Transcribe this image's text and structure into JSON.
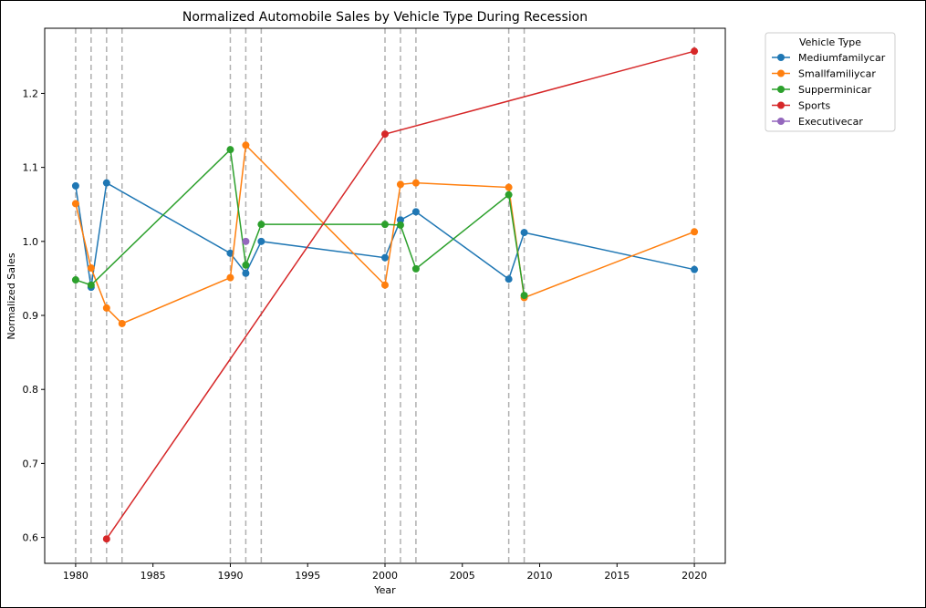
{
  "chart_data": {
    "type": "line",
    "title": "Normalized Automobile Sales by Vehicle Type During Recession",
    "xlabel": "Year",
    "ylabel": "Normalized Sales",
    "xlim": [
      1978,
      2022
    ],
    "ylim": [
      0.565,
      1.288
    ],
    "xticks": [
      1980,
      1985,
      1990,
      1995,
      2000,
      2005,
      2010,
      2015,
      2020
    ],
    "yticks": [
      0.6,
      0.7,
      0.8,
      0.9,
      1.0,
      1.1,
      1.2
    ],
    "recession_years": [
      1980,
      1981,
      1982,
      1983,
      1990,
      1991,
      1992,
      2000,
      2001,
      2002,
      2008,
      2009,
      2020
    ],
    "grid": false,
    "legend": {
      "title": "Vehicle Type",
      "placement": "outside-top-right"
    },
    "series": [
      {
        "name": "Mediumfamilycar",
        "color": "#1f77b4",
        "points": [
          [
            1980,
            1.075
          ],
          [
            1981,
            0.938
          ],
          [
            1982,
            1.079
          ],
          [
            1990,
            0.984
          ],
          [
            1991,
            0.957
          ],
          [
            1992,
            1.0
          ],
          [
            2000,
            0.978
          ],
          [
            2001,
            1.029
          ],
          [
            2002,
            1.04
          ],
          [
            2008,
            0.949
          ],
          [
            2009,
            1.012
          ],
          [
            2020,
            0.962
          ]
        ]
      },
      {
        "name": "Smallfamiliycar",
        "color": "#ff7f0e",
        "points": [
          [
            1980,
            1.051
          ],
          [
            1981,
            0.964
          ],
          [
            1982,
            0.91
          ],
          [
            1983,
            0.889
          ],
          [
            1990,
            0.951
          ],
          [
            1991,
            1.13
          ],
          [
            2000,
            0.941
          ],
          [
            2001,
            1.077
          ],
          [
            2002,
            1.079
          ],
          [
            2008,
            1.073
          ],
          [
            2009,
            0.924
          ],
          [
            2020,
            1.013
          ]
        ]
      },
      {
        "name": "Supperminicar",
        "color": "#2ca02c",
        "points": [
          [
            1980,
            0.948
          ],
          [
            1981,
            0.941
          ],
          [
            1990,
            1.124
          ],
          [
            1991,
            0.968
          ],
          [
            1992,
            1.023
          ],
          [
            2000,
            1.023
          ],
          [
            2001,
            1.022
          ],
          [
            2002,
            0.963
          ],
          [
            2008,
            1.063
          ],
          [
            2009,
            0.927
          ]
        ]
      },
      {
        "name": "Sports",
        "color": "#d62728",
        "points": [
          [
            1982,
            0.598
          ],
          [
            2000,
            1.145
          ],
          [
            2020,
            1.257
          ]
        ]
      },
      {
        "name": "Executivecar",
        "color": "#9467bd",
        "points": [
          [
            1991,
            1.0
          ]
        ]
      }
    ]
  }
}
